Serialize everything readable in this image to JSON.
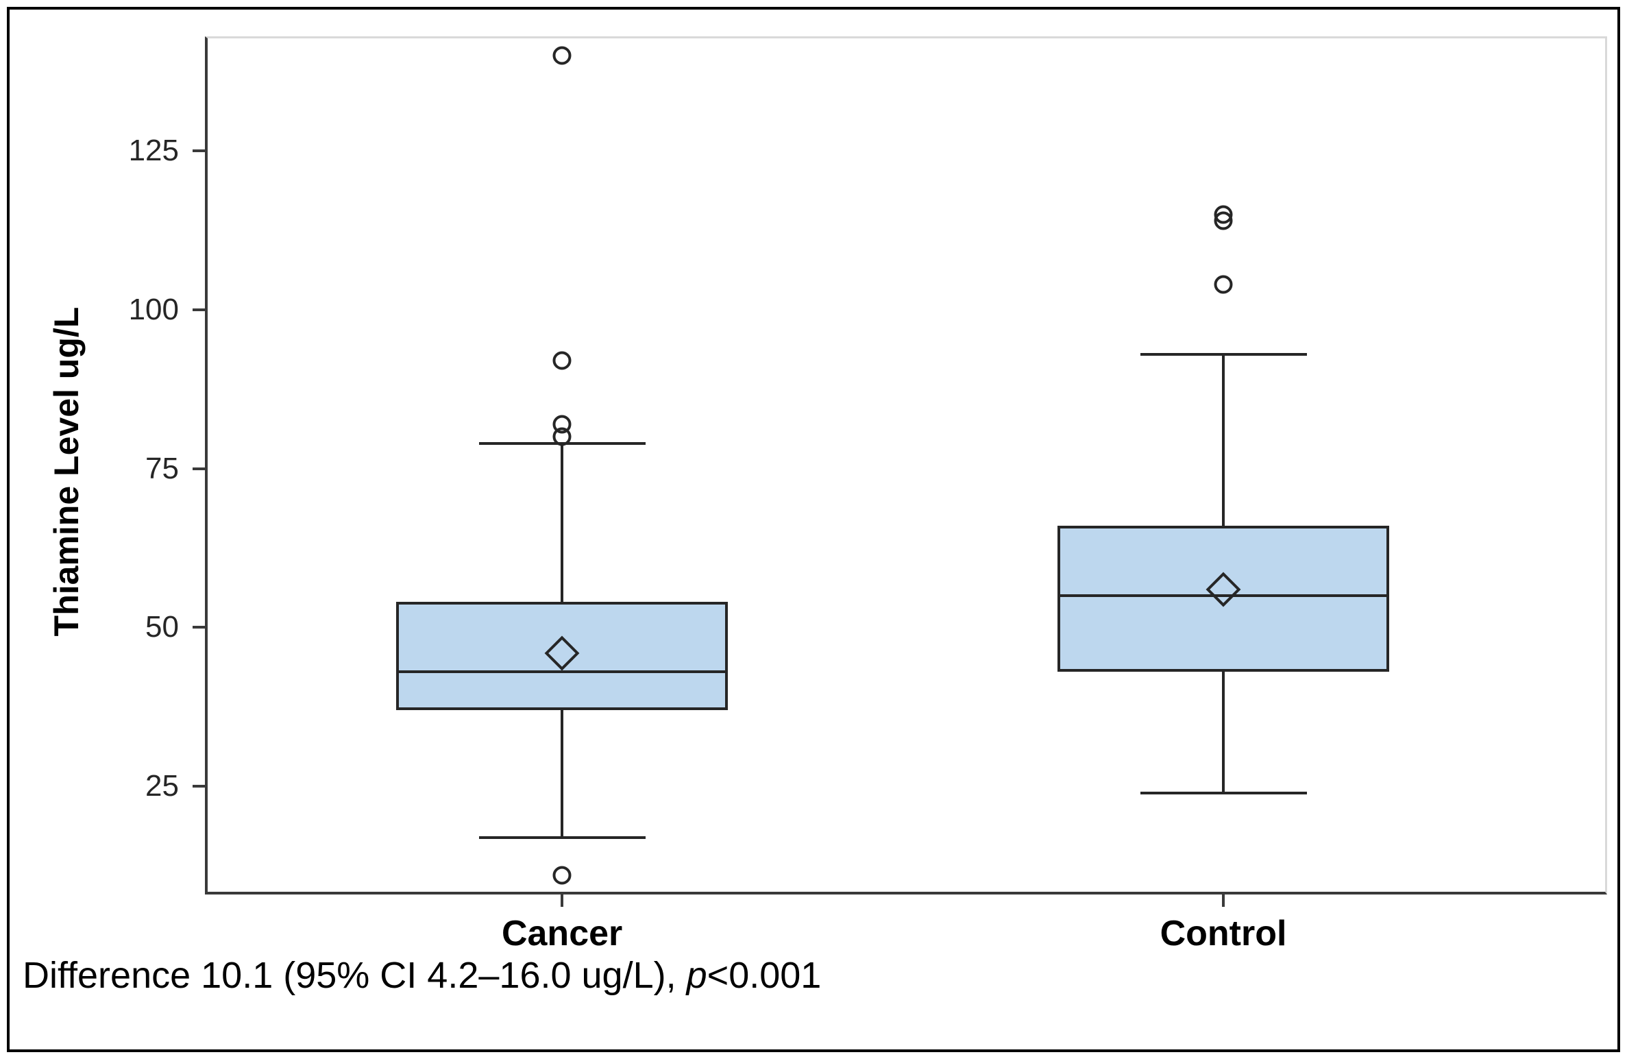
{
  "figure_title": "",
  "y_axis": {
    "title": "Thiamine Level ug/L"
  },
  "caption": {
    "prefix": "Difference 10.1 (95% CI 4.2–16.0 ug/L), ",
    "italic": "p",
    "suffix": "<0.001"
  },
  "colors": {
    "box_fill": "#BDD7EE",
    "stroke": "#262626",
    "axis_line": "#3A3A3A",
    "frame_gray": "#D9D9D9",
    "outer_border": "#000000"
  },
  "chart_data": {
    "type": "boxplot",
    "title": "",
    "xlabel": "",
    "ylabel": "Thiamine Level ug/L",
    "categories": [
      "Cancer",
      "Control"
    ],
    "yticks": [
      25,
      50,
      75,
      100,
      125
    ],
    "ylim": [
      8,
      143
    ],
    "grid": false,
    "legend": "none",
    "series": [
      {
        "name": "Cancer",
        "whisker_low": 17,
        "q1": 37,
        "median": 43,
        "mean": 46,
        "q3": 54,
        "whisker_high": 79,
        "outliers": [
          11,
          80,
          82,
          92,
          140
        ]
      },
      {
        "name": "Control",
        "whisker_low": 24,
        "q1": 43,
        "median": 55,
        "mean": 56,
        "q3": 66,
        "whisker_high": 93,
        "outliers": [
          104,
          114,
          115
        ]
      }
    ],
    "annotation": "Difference 10.1 (95% CI 4.2–16.0 ug/L), p<0.001"
  }
}
